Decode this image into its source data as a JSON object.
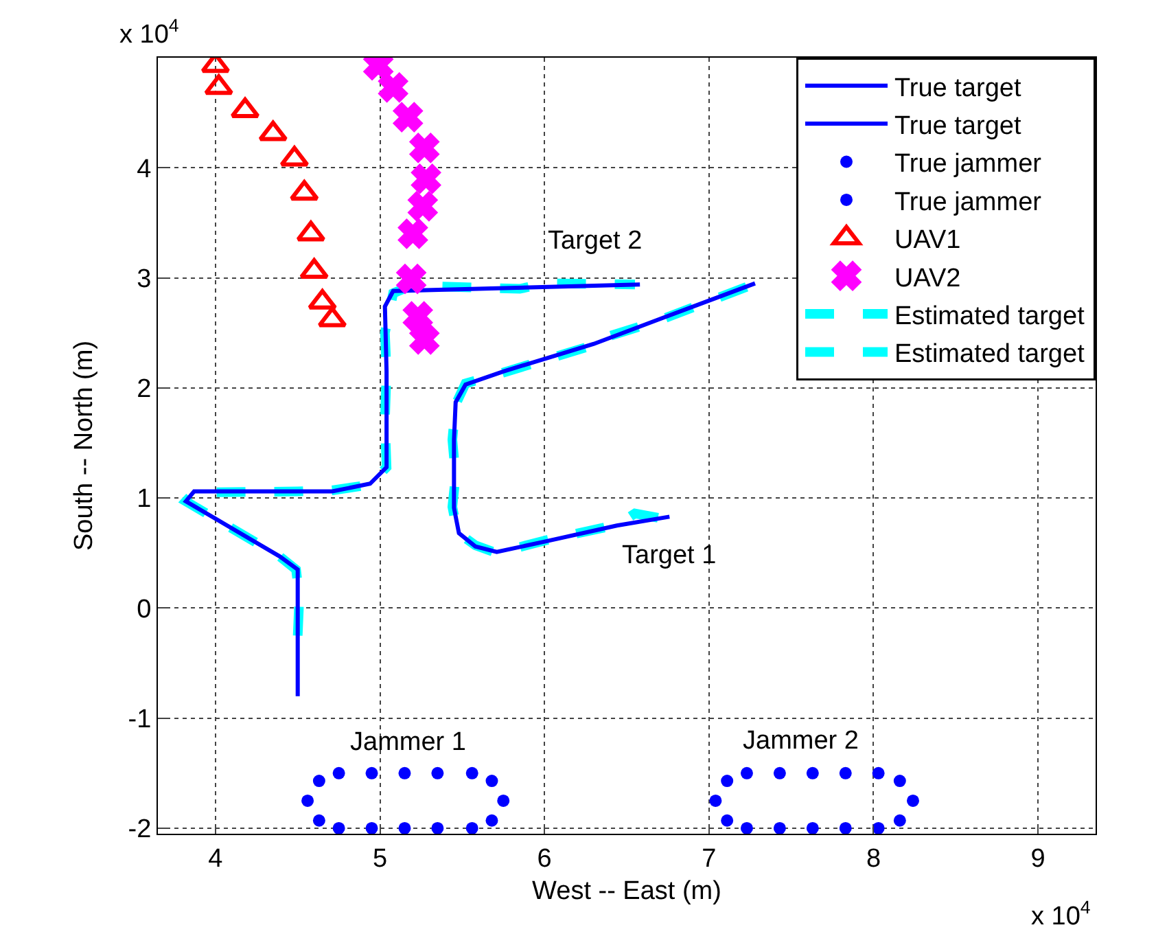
{
  "chart_data": {
    "type": "line",
    "xlabel": "West -- East (m)",
    "ylabel": "South -- North (m)",
    "xlim": [
      3.65,
      9.35
    ],
    "ylim": [
      -2.05,
      5
    ],
    "xticks": [
      4,
      5,
      6,
      7,
      8,
      9
    ],
    "yticks": [
      -2,
      -1,
      0,
      1,
      2,
      3,
      4
    ],
    "grid": true,
    "legend": "top right",
    "series": [
      {
        "name": "True target",
        "color": "#0000ff",
        "line_style": "solid",
        "x": [
          6.76,
          6.44,
          6.02,
          5.71,
          5.58,
          5.48,
          5.45,
          5.45,
          5.46,
          5.52,
          5.75,
          6.3,
          6.69,
          7.28
        ],
        "values": [
          0.83,
          0.75,
          0.61,
          0.51,
          0.56,
          0.68,
          0.91,
          1.53,
          1.87,
          2.03,
          2.15,
          2.4,
          2.62,
          2.95
        ]
      },
      {
        "name": "True target",
        "color": "#0000ff",
        "line_style": "solid",
        "x": [
          4.5,
          4.5,
          4.39,
          3.82,
          3.87,
          4.71,
          4.94,
          5.04,
          5.04,
          5.03,
          5.08,
          6.58
        ],
        "values": [
          -0.8,
          0.35,
          0.47,
          0.97,
          1.06,
          1.06,
          1.13,
          1.28,
          2.15,
          2.74,
          2.88,
          2.94
        ]
      },
      {
        "name": "True jammer",
        "type": "scatter",
        "marker": "circle",
        "color": "#0000ff",
        "x": [
          4.75,
          4.95,
          5.15,
          5.35,
          5.56,
          5.68,
          5.75,
          5.68,
          5.56,
          5.35,
          5.15,
          4.95,
          4.75,
          4.63,
          4.56,
          4.63
        ],
        "values": [
          -1.5,
          -1.5,
          -1.5,
          -1.5,
          -1.5,
          -1.57,
          -1.75,
          -1.93,
          -2.0,
          -2.0,
          -2.0,
          -2.0,
          -2.0,
          -1.93,
          -1.75,
          -1.57
        ]
      },
      {
        "name": "True jammer",
        "type": "scatter",
        "marker": "circle",
        "color": "#0000ff",
        "x": [
          7.23,
          7.43,
          7.63,
          7.83,
          8.03,
          8.16,
          8.24,
          8.16,
          8.03,
          7.83,
          7.63,
          7.43,
          7.23,
          7.11,
          7.04,
          7.11
        ],
        "values": [
          -1.5,
          -1.5,
          -1.5,
          -1.5,
          -1.5,
          -1.57,
          -1.75,
          -1.93,
          -2.0,
          -2.0,
          -2.0,
          -2.0,
          -2.0,
          -1.93,
          -1.75,
          -1.57
        ]
      },
      {
        "name": "UAV1",
        "type": "scatter",
        "marker": "triangle",
        "color": "#ff0000",
        "x": [
          4.0,
          4.02,
          4.18,
          4.35,
          4.48,
          4.54,
          4.58,
          4.6,
          4.65,
          4.71
        ],
        "values": [
          4.93,
          4.73,
          4.52,
          4.31,
          4.08,
          3.77,
          3.4,
          3.06,
          2.78,
          2.62
        ]
      },
      {
        "name": "UAV2",
        "type": "scatter",
        "marker": "cross",
        "color": "#ff00ff",
        "x": [
          4.99,
          5.08,
          5.17,
          5.27,
          5.28,
          5.26,
          5.2,
          5.19,
          5.23,
          5.27
        ],
        "values": [
          4.93,
          4.73,
          4.46,
          4.18,
          3.9,
          3.65,
          3.4,
          2.99,
          2.65,
          2.44
        ]
      },
      {
        "name": "Estimated target",
        "color": "#00ffff",
        "line_style": "dashed",
        "x": [
          6.69,
          6.55,
          6.45,
          6.02,
          5.71,
          5.58,
          5.47,
          5.44,
          5.46,
          5.44,
          5.46,
          5.52,
          5.75,
          6.3,
          6.35,
          6.69,
          7.25
        ],
        "values": [
          0.82,
          0.86,
          0.76,
          0.62,
          0.5,
          0.57,
          0.69,
          0.92,
          1.2,
          1.53,
          1.85,
          2.04,
          2.14,
          2.39,
          2.45,
          2.61,
          2.93
        ]
      },
      {
        "name": "Estimated target",
        "color": "#00ffff",
        "line_style": "dashed",
        "x": [
          4.5,
          4.51,
          4.49,
          4.39,
          3.82,
          3.87,
          4.5,
          4.71,
          4.94,
          5.04,
          5.03,
          5.04,
          5.03,
          5.08,
          5.19,
          5.85,
          6.0,
          6.55
        ],
        "values": [
          -0.25,
          0.1,
          0.35,
          0.47,
          0.97,
          1.05,
          1.06,
          1.07,
          1.12,
          1.28,
          1.7,
          2.15,
          2.5,
          2.86,
          2.93,
          2.9,
          2.95,
          2.94
        ]
      }
    ],
    "annotations": [
      "x 10$^{4}$",
      "x 10$^{4}$",
      "Target 2",
      "Target 1",
      "Jammer 1",
      "Jammer 2"
    ]
  }
}
